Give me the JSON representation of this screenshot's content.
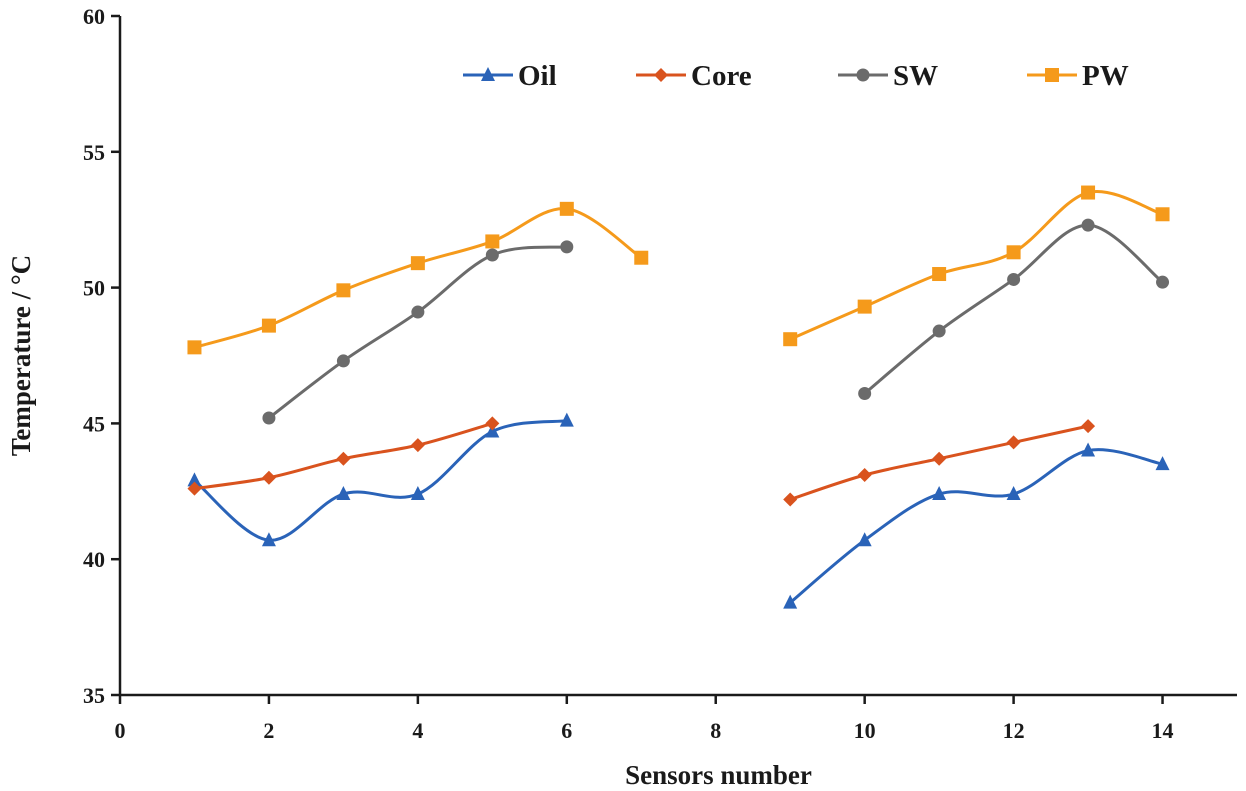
{
  "chart_data": {
    "type": "line",
    "title": "",
    "xlabel": "Sensors number",
    "ylabel": "Temperature  / °C",
    "xlim": [
      0,
      15
    ],
    "ylim": [
      35,
      60
    ],
    "xticks": [
      0,
      2,
      4,
      6,
      8,
      10,
      12,
      14
    ],
    "yticks": [
      35,
      40,
      45,
      50,
      55,
      60
    ],
    "grid": false,
    "legend_position": "top",
    "smooth": true,
    "series": [
      {
        "name": "Oil",
        "color": "#2a63b8",
        "marker": "triangle",
        "segments": [
          [
            [
              1,
              42.9
            ],
            [
              2,
              40.7
            ],
            [
              3,
              42.4
            ],
            [
              4,
              42.4
            ],
            [
              5,
              44.7
            ],
            [
              6,
              45.1
            ]
          ],
          [
            [
              9,
              38.4
            ],
            [
              10,
              40.7
            ],
            [
              11,
              42.4
            ],
            [
              12,
              42.4
            ],
            [
              13,
              44.0
            ],
            [
              14,
              43.5
            ]
          ]
        ]
      },
      {
        "name": "Core",
        "color": "#d9531e",
        "marker": "diamond",
        "segments": [
          [
            [
              1,
              42.6
            ],
            [
              2,
              43.0
            ],
            [
              3,
              43.7
            ],
            [
              4,
              44.2
            ],
            [
              5,
              45.0
            ]
          ],
          [
            [
              9,
              42.2
            ],
            [
              10,
              43.1
            ],
            [
              11,
              43.7
            ],
            [
              12,
              44.3
            ],
            [
              13,
              44.9
            ]
          ]
        ]
      },
      {
        "name": "SW",
        "color": "#6b6b6b",
        "marker": "circle",
        "segments": [
          [
            [
              2,
              45.2
            ],
            [
              3,
              47.3
            ],
            [
              4,
              49.1
            ],
            [
              5,
              51.2
            ],
            [
              6,
              51.5
            ]
          ],
          [
            [
              10,
              46.1
            ],
            [
              11,
              48.4
            ],
            [
              12,
              50.3
            ],
            [
              13,
              52.3
            ],
            [
              14,
              50.2
            ]
          ]
        ]
      },
      {
        "name": "PW",
        "color": "#f59a1b",
        "marker": "square",
        "segments": [
          [
            [
              1,
              47.8
            ],
            [
              2,
              48.6
            ],
            [
              3,
              49.9
            ],
            [
              4,
              50.9
            ],
            [
              5,
              51.7
            ],
            [
              6,
              52.9
            ],
            [
              7,
              51.1
            ]
          ],
          [
            [
              9,
              48.1
            ],
            [
              10,
              49.3
            ],
            [
              11,
              50.5
            ],
            [
              12,
              51.3
            ],
            [
              13,
              53.5
            ],
            [
              14,
              52.7
            ]
          ]
        ]
      }
    ]
  }
}
